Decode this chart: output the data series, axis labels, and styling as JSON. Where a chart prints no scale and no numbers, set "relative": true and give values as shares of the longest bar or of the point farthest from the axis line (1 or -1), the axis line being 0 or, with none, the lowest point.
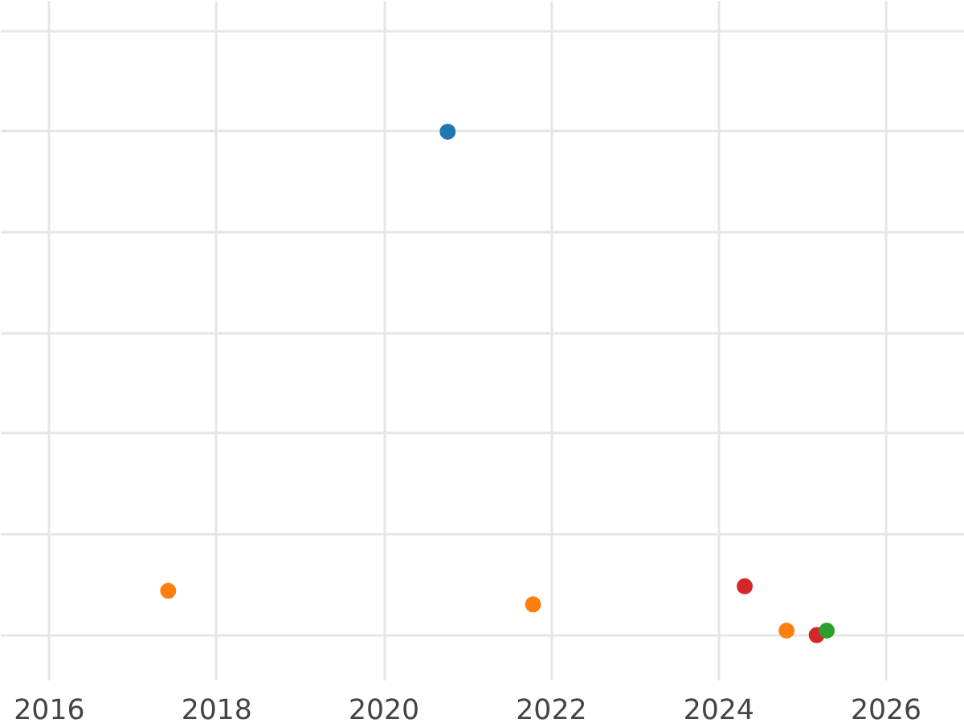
{
  "chart_data": {
    "type": "scatter",
    "relative": true,
    "grid": true,
    "marker": "circle",
    "xlim": [
      2015.42,
      2026.94
    ],
    "xticks": [
      2016,
      2018,
      2020,
      2022,
      2024,
      2026
    ],
    "series": [
      {
        "color": "#1f77b4",
        "x": [
          2020.76
        ],
        "values": [
          1
        ]
      },
      {
        "color": "#ff7f0e",
        "x": [
          2017.42,
          2021.78,
          2024.81
        ],
        "values": [
          0.088,
          0.061,
          0.009
        ]
      },
      {
        "color": "#d62728",
        "x": [
          2024.31,
          2025.17
        ],
        "values": [
          0.097,
          0
        ]
      },
      {
        "color": "#2ca02c",
        "x": [
          2025.29
        ],
        "values": [
          0.009
        ]
      }
    ]
  }
}
